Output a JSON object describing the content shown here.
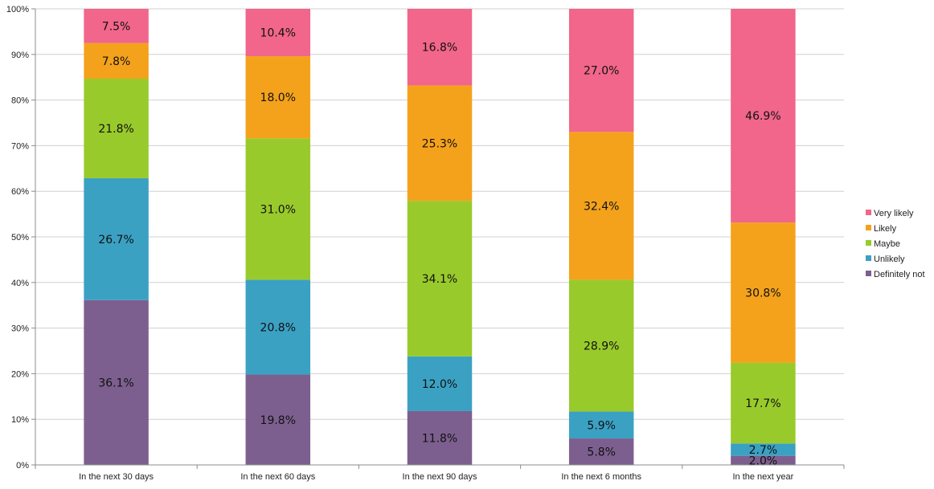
{
  "chart_data": {
    "type": "bar",
    "stacked": true,
    "normalized": true,
    "categories": [
      "In the next 30 days",
      "In the next 60 days",
      "In the next 90 days",
      "In the next 6 months",
      "In the next year"
    ],
    "series": [
      {
        "name": "Definitely not",
        "color": "#7d5f8f",
        "values": [
          36.1,
          19.8,
          11.8,
          5.8,
          2.0
        ]
      },
      {
        "name": "Unlikely",
        "color": "#3ba1c3",
        "values": [
          26.7,
          20.8,
          12.0,
          5.9,
          2.7
        ]
      },
      {
        "name": "Maybe",
        "color": "#99ca2b",
        "values": [
          21.8,
          31.0,
          34.1,
          28.9,
          17.7
        ]
      },
      {
        "name": "Likely",
        "color": "#f4a21b",
        "values": [
          7.8,
          18.0,
          25.3,
          32.4,
          30.8
        ]
      },
      {
        "name": "Very likely",
        "color": "#f1668a",
        "values": [
          7.5,
          10.4,
          16.8,
          27.0,
          46.9
        ]
      }
    ],
    "data_labels": [
      [
        "36.1%",
        "26.7%",
        "21.8%",
        "7.8%",
        "7.5%"
      ],
      [
        "19.8%",
        "20.8%",
        "31.0%",
        "18.0%",
        "10.4%"
      ],
      [
        "11.8%",
        "12.0%",
        "34.1%",
        "25.3%",
        "16.8%"
      ],
      [
        "5.8%",
        "5.9%",
        "28.9%",
        "32.4%",
        "27.0%"
      ],
      [
        "2.0%",
        "2.7%",
        "17.7%",
        "30.8%",
        "46.9%"
      ]
    ],
    "y_ticks": [
      "0%",
      "10%",
      "20%",
      "30%",
      "40%",
      "50%",
      "60%",
      "70%",
      "80%",
      "90%",
      "100%"
    ],
    "ylim": [
      0,
      100
    ],
    "grid": true,
    "legend_position": "right",
    "title": "",
    "xlabel": "",
    "ylabel": ""
  }
}
